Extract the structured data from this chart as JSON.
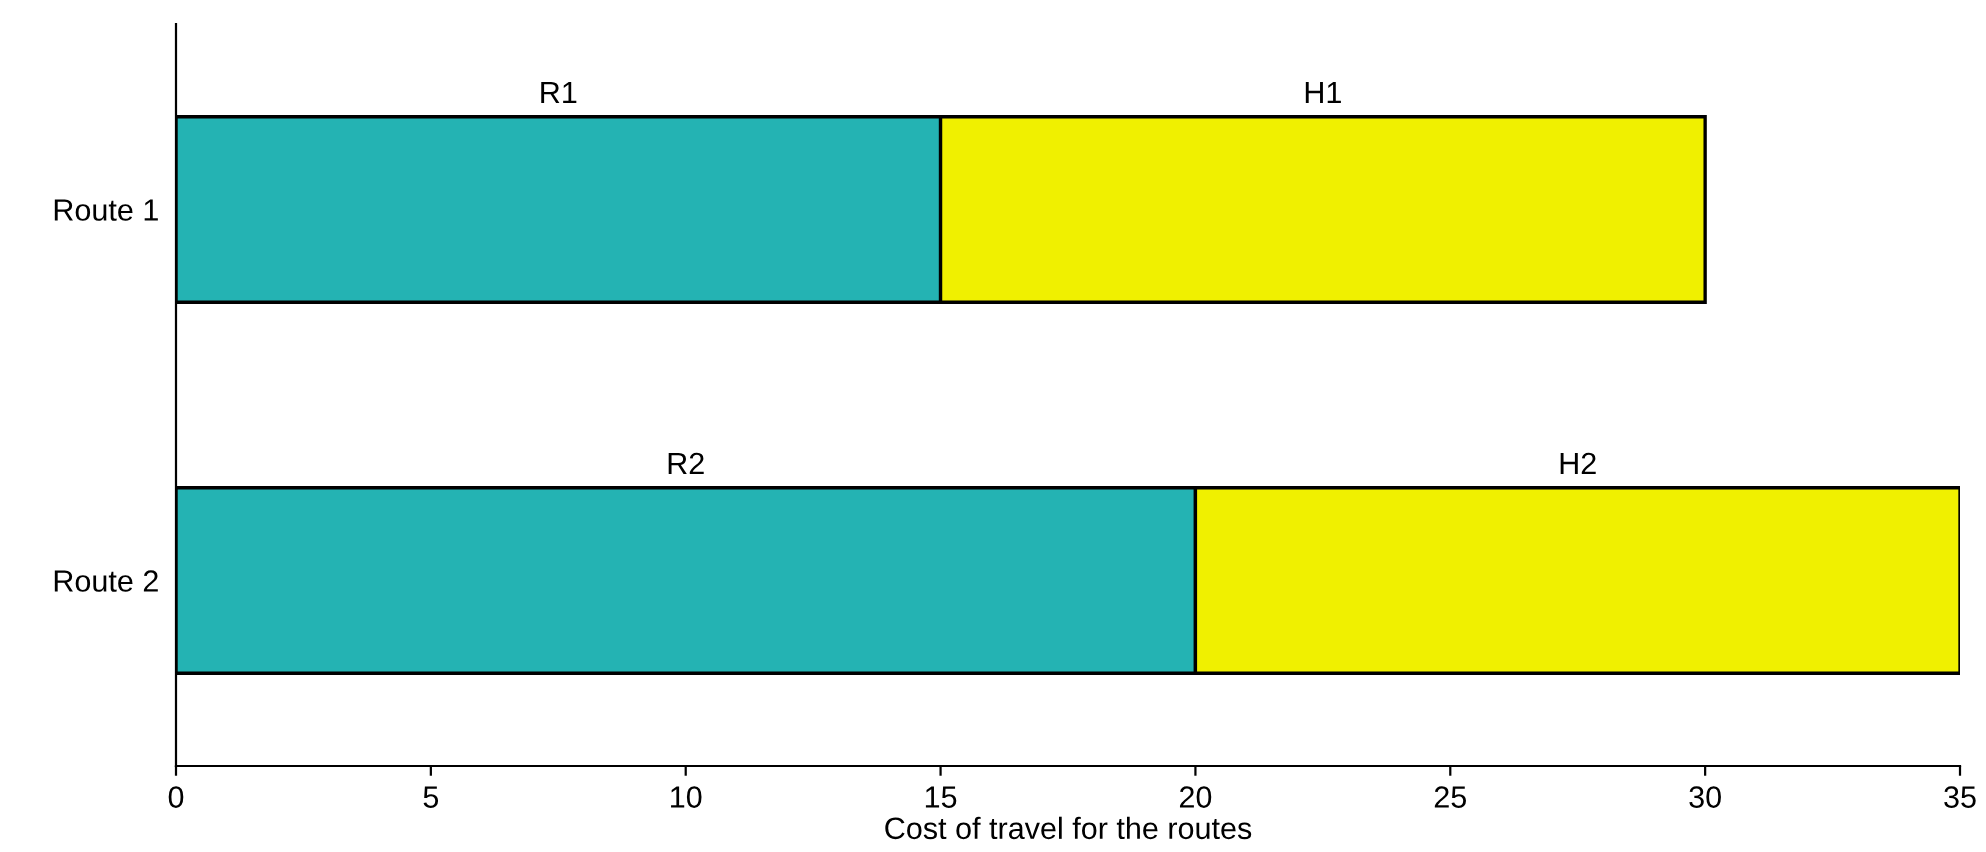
{
  "chart_data": {
    "type": "bar",
    "orientation": "horizontal",
    "stacked": true,
    "xlabel": "Cost of travel for the routes",
    "categories": [
      "Route 1",
      "Route 2"
    ],
    "series": [
      {
        "color": "#24b3b3",
        "values": [
          15,
          20
        ],
        "value_labels": [
          "R1",
          "R2"
        ]
      },
      {
        "color": "#f0f000",
        "values": [
          15,
          15
        ],
        "value_labels": [
          "H1",
          "H2"
        ]
      }
    ],
    "xlim": [
      0,
      35
    ],
    "xticks": [
      0,
      5,
      10,
      15,
      20,
      25,
      30,
      35
    ],
    "grid": false,
    "legend": false
  }
}
